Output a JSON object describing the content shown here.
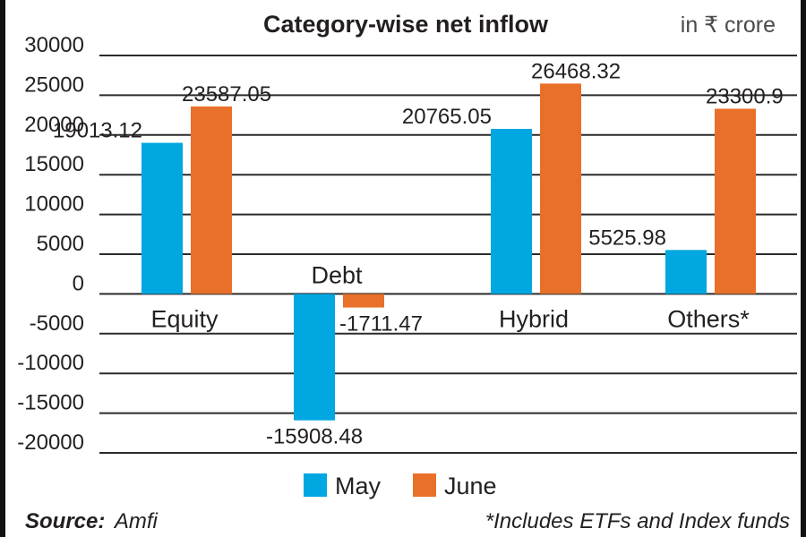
{
  "chart_data": {
    "type": "bar",
    "title": "Category-wise net inflow",
    "unit": "in ₹ crore",
    "categories": [
      "Equity",
      "Debt",
      "Hybrid",
      "Others*"
    ],
    "series": [
      {
        "name": "May",
        "values": [
          19013.12,
          -15908.48,
          20765.05,
          5525.98
        ],
        "labels": [
          "19013.12",
          "-15908.48",
          "20765.05",
          "5525.98"
        ],
        "color": "#00a7e1"
      },
      {
        "name": "June",
        "values": [
          23587.05,
          -1711.47,
          26468.32,
          23300.9
        ],
        "labels": [
          "23587.05",
          "-1711.47",
          "26468.32",
          "23300.9"
        ],
        "color": "#e8702a"
      }
    ],
    "yticks": [
      "30000",
      "25000",
      "20000",
      "15000",
      "10000",
      "5000",
      "0",
      "-5000",
      "-10000",
      "-15000",
      "-20000"
    ],
    "ylim": [
      -20000,
      30000
    ],
    "grid": true,
    "legend_position": "bottom-center",
    "source_label": "Source:",
    "source": "Amfi",
    "note": "*Includes ETFs and Index funds"
  }
}
